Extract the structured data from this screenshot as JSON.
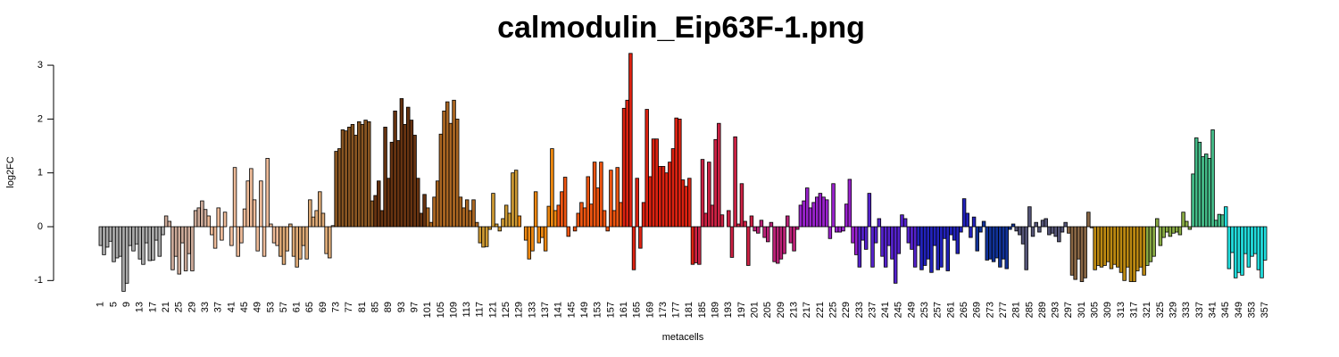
{
  "chart_data": {
    "type": "bar",
    "title": "calmodulin_Eip63F-1.png",
    "x_label": "metacells",
    "y_label": "log2FC",
    "ylim": [
      -1.25,
      3.25
    ],
    "yticks": [
      -1,
      0,
      1,
      2,
      3
    ],
    "categories": [
      "1",
      null,
      null,
      null,
      "5",
      null,
      null,
      null,
      "9",
      null,
      null,
      null,
      "13",
      null,
      null,
      null,
      "17",
      null,
      null,
      null,
      "21",
      null,
      null,
      null,
      "25",
      null,
      null,
      null,
      "29",
      null,
      null,
      null,
      "33",
      null,
      null,
      null,
      "37",
      null,
      null,
      null,
      "41",
      null,
      null,
      null,
      "45",
      null,
      null,
      null,
      "49",
      null,
      null,
      null,
      "53",
      null,
      null,
      null,
      "57",
      null,
      null,
      null,
      "61",
      null,
      null,
      null,
      "65",
      null,
      null,
      null,
      "69",
      null,
      null,
      null,
      "73",
      null,
      null,
      null,
      "77",
      null,
      null,
      null,
      "81",
      null,
      null,
      null,
      "85",
      null,
      null,
      null,
      "89",
      null,
      null,
      null,
      "93",
      null,
      null,
      null,
      "97",
      null,
      null,
      null,
      "101",
      null,
      null,
      null,
      "105",
      null,
      null,
      null,
      "109",
      null,
      null,
      null,
      "113",
      null,
      null,
      null,
      "117",
      null,
      null,
      null,
      "121",
      null,
      null,
      null,
      "125",
      null,
      null,
      null,
      "129",
      null,
      null,
      null,
      "133",
      null,
      null,
      null,
      "137",
      null,
      null,
      null,
      "141",
      null,
      null,
      null,
      "145",
      null,
      null,
      null,
      "149",
      null,
      null,
      null,
      "153",
      null,
      null,
      null,
      "157",
      null,
      null,
      null,
      "161",
      null,
      null,
      null,
      "165",
      null,
      null,
      null,
      "169",
      null,
      null,
      null,
      "173",
      null,
      null,
      null,
      "177",
      null,
      null,
      null,
      "181",
      null,
      null,
      null,
      "185",
      null,
      null,
      null,
      "189",
      null,
      null,
      null,
      "193",
      null,
      null,
      null,
      "197",
      null,
      null,
      null,
      "201",
      null,
      null,
      null,
      "205",
      null,
      null,
      null,
      "209",
      null,
      null,
      null,
      "213",
      null,
      null,
      null,
      "217",
      null,
      null,
      null,
      "221",
      null,
      null,
      null,
      "225",
      null,
      null,
      null,
      "229",
      null,
      null,
      null,
      "233",
      null,
      null,
      null,
      "237",
      null,
      null,
      null,
      "241",
      null,
      null,
      null,
      "245",
      null,
      null,
      null,
      "249",
      null,
      null,
      null,
      "253",
      null,
      null,
      null,
      "257",
      null,
      null,
      null,
      "261",
      null,
      null,
      null,
      "265",
      null,
      null,
      null,
      "269",
      null,
      null,
      null,
      "273",
      null,
      null,
      null,
      "277",
      null,
      null,
      null,
      "281",
      null,
      null,
      null,
      "285",
      null,
      null,
      null,
      "289",
      null,
      null,
      null,
      "293",
      null,
      null,
      null,
      "297",
      null,
      null,
      null,
      "301",
      null,
      null,
      null,
      "305",
      null,
      null,
      null,
      "309",
      null,
      null,
      null,
      "313",
      null,
      null,
      null,
      "317",
      null,
      null,
      null,
      "321",
      null,
      null,
      null,
      "325",
      null,
      null,
      null,
      "329",
      null,
      null,
      null,
      "333",
      null,
      null,
      null,
      "337",
      null,
      null,
      null,
      "341",
      null,
      null,
      null,
      "345",
      null,
      null,
      null,
      "349",
      null,
      null,
      null,
      "353",
      null,
      null,
      null,
      "357"
    ],
    "values": [
      -0.35,
      -0.52,
      -0.38,
      -0.27,
      -0.65,
      -0.58,
      -0.55,
      -1.2,
      -1.05,
      -0.35,
      -0.45,
      -0.32,
      -0.6,
      -0.7,
      -0.3,
      -0.63,
      -0.62,
      -0.25,
      -0.55,
      -0.15,
      0.2,
      0.1,
      -0.8,
      -0.55,
      -0.88,
      -0.3,
      -0.82,
      -0.5,
      -0.82,
      0.3,
      0.35,
      0.48,
      0.32,
      0.2,
      -0.15,
      -0.4,
      0.35,
      -0.25,
      0.27,
      0.0,
      -0.35,
      1.1,
      -0.55,
      -0.3,
      0.33,
      0.85,
      1.08,
      0.5,
      -0.45,
      0.85,
      -0.55,
      1.27,
      0.05,
      -0.3,
      -0.35,
      -0.55,
      -0.7,
      -0.45,
      0.05,
      -0.55,
      -0.75,
      -0.6,
      -0.35,
      -0.6,
      0.5,
      0.18,
      0.3,
      0.65,
      0.25,
      -0.5,
      -0.58,
      0.02,
      1.4,
      1.45,
      1.8,
      1.78,
      1.85,
      1.9,
      1.7,
      1.95,
      1.9,
      1.98,
      1.95,
      0.48,
      0.58,
      0.85,
      0.3,
      1.85,
      0.9,
      1.57,
      2.15,
      1.6,
      2.38,
      1.9,
      2.22,
      1.98,
      1.7,
      0.9,
      0.25,
      0.6,
      0.35,
      0.08,
      0.55,
      0.85,
      1.72,
      2.15,
      2.32,
      1.92,
      2.35,
      2.0,
      0.55,
      0.35,
      0.5,
      0.3,
      0.5,
      0.08,
      -0.3,
      -0.38,
      -0.37,
      -0.05,
      0.62,
      0.05,
      -0.08,
      0.15,
      0.4,
      0.25,
      1.0,
      1.05,
      0.2,
      0.0,
      -0.25,
      -0.6,
      -0.45,
      0.65,
      -0.3,
      -0.2,
      -0.45,
      0.38,
      1.45,
      0.3,
      0.4,
      0.65,
      0.92,
      -0.18,
      0.0,
      -0.08,
      0.25,
      0.45,
      0.35,
      0.93,
      0.42,
      1.2,
      0.72,
      1.2,
      0.3,
      -0.08,
      1.05,
      0.3,
      1.1,
      0.45,
      2.2,
      2.35,
      3.22,
      -0.8,
      0.9,
      -0.4,
      0.45,
      2.18,
      0.93,
      1.63,
      1.63,
      1.12,
      1.12,
      1.0,
      1.2,
      1.45,
      2.02,
      2.0,
      0.87,
      0.75,
      0.9,
      -0.7,
      -0.67,
      -0.7,
      1.25,
      0.25,
      1.2,
      0.4,
      1.62,
      1.92,
      0.22,
      0.0,
      0.3,
      -0.57,
      1.67,
      0.05,
      0.8,
      0.1,
      -0.72,
      0.2,
      -0.08,
      -0.12,
      0.12,
      -0.2,
      -0.28,
      0.08,
      -0.65,
      -0.68,
      -0.6,
      -0.5,
      0.2,
      -0.3,
      -0.45,
      -0.05,
      0.4,
      0.48,
      0.72,
      0.35,
      0.45,
      0.55,
      0.62,
      0.55,
      0.5,
      -0.22,
      0.8,
      -0.1,
      -0.1,
      -0.08,
      0.42,
      0.88,
      -0.3,
      -0.52,
      -0.75,
      -0.25,
      -0.42,
      0.62,
      -0.75,
      -0.3,
      0.15,
      -0.55,
      -0.75,
      -0.35,
      -0.6,
      -1.05,
      -0.5,
      0.22,
      0.15,
      -0.3,
      -0.42,
      -0.75,
      -0.35,
      -0.8,
      -0.72,
      -0.6,
      -0.85,
      -0.35,
      -0.8,
      -0.75,
      -0.22,
      -0.82,
      -0.15,
      -0.25,
      -0.5,
      -0.1,
      0.52,
      0.25,
      -0.2,
      0.18,
      -0.45,
      -0.1,
      0.1,
      -0.62,
      -0.6,
      -0.65,
      -0.58,
      -0.75,
      -0.6,
      -0.78,
      -0.05,
      0.05,
      -0.08,
      -0.15,
      -0.32,
      -0.8,
      0.37,
      -0.18,
      0.08,
      -0.1,
      0.12,
      0.15,
      -0.15,
      -0.12,
      -0.18,
      -0.28,
      -0.1,
      0.08,
      -0.12,
      -0.9,
      -0.98,
      -0.6,
      -1.02,
      -0.95,
      0.27,
      -0.02,
      -0.8,
      -0.72,
      -0.75,
      -0.72,
      -0.65,
      -0.78,
      -0.7,
      -0.75,
      -0.85,
      -1.0,
      -0.75,
      -1.02,
      -1.02,
      -0.82,
      -0.75,
      -0.9,
      -0.72,
      -0.65,
      -0.55,
      0.15,
      -0.35,
      -0.2,
      -0.1,
      -0.18,
      -0.12,
      -0.1,
      -0.15,
      0.27,
      0.1,
      -0.05,
      0.98,
      1.65,
      1.57,
      1.3,
      1.35,
      1.27,
      1.8,
      0.12,
      0.23,
      0.22,
      0.37,
      -0.78,
      -0.48,
      -0.95,
      -0.85,
      -0.9,
      -0.5,
      -0.75,
      -0.55,
      -0.5,
      -0.8,
      -0.95,
      -0.62
    ],
    "colors": [
      "#aaa",
      "#aaa",
      "#aaa",
      "#aaa",
      "#aaa",
      "#aaa",
      "#aaa",
      "#aaa",
      "#aaa",
      "#aaa",
      "#aaa",
      "#aaa",
      "#aaa",
      "#aaa",
      "#aaa",
      "#aaa",
      "#aaa",
      "#aaa",
      "#aaa",
      "#aaa",
      "#ca9",
      "#ca9",
      "#ca9",
      "#ca9",
      "#ca9",
      "#ca9",
      "#ca9",
      "#ca9",
      "#ca9",
      "#ca9",
      "#ca9",
      "#ca9",
      "#ca9",
      "#eb9",
      "#eb9",
      "#eb9",
      "#eb9",
      "#eb9",
      "#eb9",
      "#eb9",
      "#eb9",
      "#eb9",
      "#eb9",
      "#eb9",
      "#eb9",
      "#eb9",
      "#eb9",
      "#eb9",
      "#eb9",
      "#eb9",
      "#eb9",
      "#eb9",
      "#eb9",
      "#eb9",
      "#eb9",
      "#da7",
      "#da7",
      "#da7",
      "#da7",
      "#da7",
      "#da7",
      "#da7",
      "#da7",
      "#da7",
      "#da7",
      "#da7",
      "#da7",
      "#da7",
      "#da7",
      "#da7",
      "#da7",
      "#da7",
      "#852",
      "#852",
      "#852",
      "#852",
      "#852",
      "#852",
      "#852",
      "#852",
      "#852",
      "#852",
      "#852",
      "#852",
      "#631",
      "#631",
      "#631",
      "#631",
      "#631",
      "#631",
      "#631",
      "#631",
      "#631",
      "#631",
      "#631",
      "#631",
      "#631",
      "#631",
      "#631",
      "#631",
      "#a62",
      "#a62",
      "#a62",
      "#a62",
      "#a62",
      "#a62",
      "#a62",
      "#a62",
      "#a62",
      "#a62",
      "#a62",
      "#a62",
      "#a62",
      "#a62",
      "#a62",
      "#a62",
      "#c93",
      "#c93",
      "#c93",
      "#c93",
      "#c93",
      "#c93",
      "#c93",
      "#c93",
      "#c93",
      "#c93",
      "#c93",
      "#c93",
      "#e81",
      "#e81",
      "#e81",
      "#e81",
      "#e81",
      "#e81",
      "#e81",
      "#e81",
      "#e81",
      "#e81",
      "#e81",
      "#e81",
      "#e51",
      "#e51",
      "#e51",
      "#e51",
      "#e51",
      "#e51",
      "#e51",
      "#e51",
      "#e51",
      "#e51",
      "#e51",
      "#e51",
      "#e51",
      "#e51",
      "#e51",
      "#e51",
      "#e51",
      "#e51",
      "#e51",
      "#e51",
      "#d21",
      "#d21",
      "#d21",
      "#d21",
      "#d21",
      "#d21",
      "#d21",
      "#d21",
      "#d21",
      "#d21",
      "#d21",
      "#d21",
      "#d21",
      "#d21",
      "#d21",
      "#d21",
      "#d21",
      "#d21",
      "#d21",
      "#d21",
      "#d21",
      "#d21",
      "#c24",
      "#c24",
      "#c24",
      "#c24",
      "#c24",
      "#c24",
      "#c24",
      "#c24",
      "#c24",
      "#c24",
      "#c24",
      "#c24",
      "#c24",
      "#c24",
      "#c24",
      "#c24",
      "#c24",
      "#c24",
      "#b27",
      "#b27",
      "#b27",
      "#b27",
      "#b27",
      "#b27",
      "#b27",
      "#b27",
      "#b27",
      "#b27",
      "#b27",
      "#b27",
      "#b27",
      "#b27",
      "#92c",
      "#92c",
      "#92c",
      "#92c",
      "#92c",
      "#92c",
      "#92c",
      "#92c",
      "#92c",
      "#92c",
      "#92c",
      "#92c",
      "#92c",
      "#92c",
      "#92c",
      "#92c",
      "#92c",
      "#92c",
      "#52c",
      "#52c",
      "#52c",
      "#52c",
      "#52c",
      "#52c",
      "#52c",
      "#52c",
      "#52c",
      "#52c",
      "#52c",
      "#52c",
      "#52c",
      "#52c",
      "#52c",
      "#52c",
      "#52c",
      "#52c",
      "#22b",
      "#22b",
      "#22b",
      "#22b",
      "#22b",
      "#22b",
      "#22b",
      "#22b",
      "#22b",
      "#22b",
      "#22b",
      "#22b",
      "#22b",
      "#22b",
      "#22b",
      "#22b",
      "#22b",
      "#22b",
      "#139",
      "#139",
      "#139",
      "#139",
      "#139",
      "#139",
      "#139",
      "#139",
      "#139",
      "#139",
      "#139",
      "#139",
      "#557",
      "#557",
      "#557",
      "#557",
      "#557",
      "#557",
      "#557",
      "#557",
      "#557",
      "#557",
      "#557",
      "#557",
      "#557",
      "#557",
      "#557",
      "#557",
      "#864",
      "#864",
      "#864",
      "#864",
      "#864",
      "#864",
      "#864",
      "#864",
      "#b81",
      "#b81",
      "#b81",
      "#b81",
      "#b81",
      "#b81",
      "#b81",
      "#b81",
      "#b81",
      "#b81",
      "#b81",
      "#b81",
      "#b81",
      "#b81",
      "#b81",
      "#b81",
      "#8a4",
      "#8a4",
      "#8a4",
      "#8a4",
      "#8a4",
      "#8a4",
      "#8a4",
      "#8a4",
      "#8a4",
      "#8a4",
      "#8a4",
      "#8a4",
      "#8a4",
      "#8a4",
      "#4b8",
      "#4b8",
      "#4b8",
      "#4b8",
      "#4b8",
      "#4b8",
      "#4b8",
      "#4b8",
      "#4b8",
      "#4b8",
      "#2dd",
      "#2dd",
      "#2dd",
      "#2dd",
      "#2dd",
      "#2dd",
      "#2dd",
      "#2dd",
      "#2dd",
      "#2dd",
      "#2dd",
      "#2dd",
      "#2dd"
    ]
  }
}
